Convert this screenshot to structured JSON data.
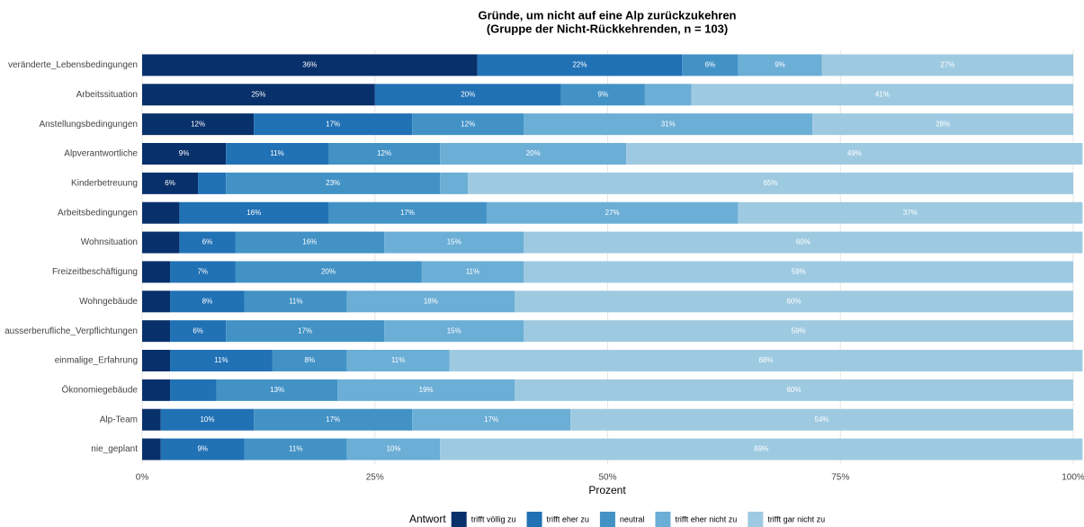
{
  "chart_data": {
    "type": "stacked_barh",
    "title": "Gründe, um nicht auf eine Alp zurückzukehren",
    "subtitle": "(Gruppe der Nicht-Rückkehrenden, n = 103)",
    "x_label": "Prozent",
    "legend_title": "Antwort",
    "categories": [
      "veränderte_Lebensbedingungen",
      "Arbeitssituation",
      "Anstellungsbedingungen",
      "Alpverantwortliche",
      "Kinderbetreuung",
      "Arbeitsbedingungen",
      "Wohnsituation",
      "Freizeitbeschäftigung",
      "Wohngebäude",
      "ausserberufliche_Verpflichtungen",
      "einmalige_Erfahrung",
      "Ökonomiegebäude",
      "Alp-Team",
      "nie_geplant"
    ],
    "series": [
      {
        "name": "trifft völlig zu",
        "color": "#08306b",
        "values": [
          36,
          25,
          12,
          9,
          6,
          4,
          4,
          3,
          3,
          3,
          3,
          3,
          2,
          2
        ],
        "value_labels": [
          "36%",
          "25%",
          "12%",
          "9%",
          "6%",
          null,
          null,
          null,
          null,
          null,
          null,
          null,
          null,
          null
        ]
      },
      {
        "name": "trifft eher zu",
        "color": "#2171b5",
        "values": [
          22,
          20,
          17,
          11,
          3,
          16,
          6,
          7,
          8,
          6,
          11,
          5,
          10,
          9
        ],
        "value_labels": [
          "22%",
          "20%",
          "17%",
          "11%",
          null,
          "16%",
          "6%",
          "7%",
          "8%",
          "6%",
          "11%",
          null,
          "10%",
          "9%"
        ]
      },
      {
        "name": "neutral",
        "color": "#4292c6",
        "values": [
          6,
          9,
          12,
          12,
          23,
          17,
          16,
          20,
          11,
          17,
          8,
          13,
          17,
          11
        ],
        "value_labels": [
          "6%",
          "9%",
          "12%",
          "12%",
          "23%",
          "17%",
          "16%",
          "20%",
          "11%",
          "17%",
          "8%",
          "13%",
          "17%",
          "11%"
        ]
      },
      {
        "name": "trifft eher nicht zu",
        "color": "#6baed6",
        "values": [
          9,
          5,
          31,
          20,
          3,
          27,
          15,
          11,
          18,
          15,
          11,
          19,
          17,
          10
        ],
        "value_labels": [
          "9%",
          null,
          "31%",
          "20%",
          null,
          "27%",
          "15%",
          "11%",
          "18%",
          "15%",
          "11%",
          "19%",
          "17%",
          "10%"
        ]
      },
      {
        "name": "trifft gar nicht zu",
        "color": "#9ecae1",
        "values": [
          27,
          41,
          28,
          49,
          65,
          37,
          60,
          59,
          60,
          59,
          68,
          60,
          54,
          69
        ],
        "value_labels": [
          "27%",
          "41%",
          "28%",
          "49%",
          "65%",
          "37%",
          "60%",
          "59%",
          "60%",
          "59%",
          "68%",
          "60%",
          "54%",
          "69%"
        ]
      }
    ],
    "xlim": [
      0,
      100
    ],
    "xticks": [
      {
        "value": 0,
        "label": "0%"
      },
      {
        "value": 25,
        "label": "25%"
      },
      {
        "value": 50,
        "label": "50%"
      },
      {
        "value": 75,
        "label": "75%"
      },
      {
        "value": 100,
        "label": "100%"
      }
    ],
    "grid": true,
    "legend": "bottom"
  }
}
